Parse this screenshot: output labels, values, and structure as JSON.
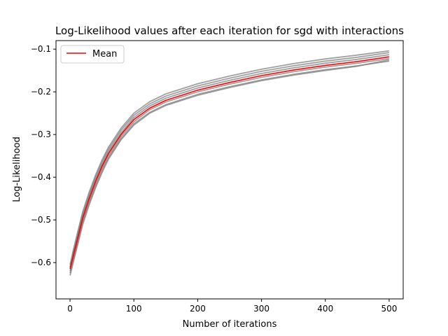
{
  "chart_data": {
    "type": "line",
    "title": "Log-Likelihood values after each iteration for sgd with interactions",
    "xlabel": "Number of iterations",
    "ylabel": "Log-Likelihood",
    "xlim": [
      -22,
      522
    ],
    "ylim": [
      -0.685,
      -0.08
    ],
    "xticks": [
      0,
      100,
      200,
      300,
      400,
      500
    ],
    "xtick_labels": [
      "0",
      "100",
      "200",
      "300",
      "400",
      "500"
    ],
    "yticks": [
      -0.6,
      -0.5,
      -0.4,
      -0.3,
      -0.2,
      -0.1
    ],
    "ytick_labels": [
      "−0.6",
      "−0.5",
      "−0.4",
      "−0.3",
      "−0.2",
      "−0.1"
    ],
    "grid": false,
    "legend": {
      "position": "top-left",
      "entries": [
        "Mean"
      ]
    },
    "colors": {
      "mean": "#ff0000",
      "runs": "#808080"
    },
    "x": [
      0,
      5,
      10,
      20,
      30,
      40,
      50,
      60,
      80,
      100,
      125,
      150,
      175,
      200,
      250,
      300,
      350,
      400,
      450,
      500
    ],
    "series": [
      {
        "name": "Mean",
        "role": "mean",
        "values": [
          -0.615,
          -0.585,
          -0.555,
          -0.495,
          -0.45,
          -0.41,
          -0.375,
          -0.345,
          -0.3,
          -0.265,
          -0.238,
          -0.22,
          -0.208,
          -0.196,
          -0.178,
          -0.162,
          -0.149,
          -0.138,
          -0.129,
          -0.118
        ]
      },
      {
        "role": "run",
        "values": [
          -0.61,
          -0.575,
          -0.545,
          -0.485,
          -0.44,
          -0.4,
          -0.365,
          -0.335,
          -0.29,
          -0.255,
          -0.228,
          -0.21,
          -0.198,
          -0.186,
          -0.168,
          -0.152,
          -0.139,
          -0.128,
          -0.119,
          -0.108
        ]
      },
      {
        "role": "run",
        "values": [
          -0.605,
          -0.572,
          -0.54,
          -0.48,
          -0.435,
          -0.395,
          -0.36,
          -0.33,
          -0.285,
          -0.25,
          -0.223,
          -0.205,
          -0.193,
          -0.181,
          -0.163,
          -0.147,
          -0.134,
          -0.123,
          -0.114,
          -0.104
        ]
      },
      {
        "role": "run",
        "values": [
          -0.625,
          -0.595,
          -0.565,
          -0.505,
          -0.46,
          -0.42,
          -0.385,
          -0.355,
          -0.31,
          -0.275,
          -0.248,
          -0.23,
          -0.218,
          -0.206,
          -0.188,
          -0.172,
          -0.159,
          -0.148,
          -0.139,
          -0.128
        ]
      },
      {
        "role": "run",
        "values": [
          -0.63,
          -0.6,
          -0.57,
          -0.51,
          -0.465,
          -0.425,
          -0.39,
          -0.358,
          -0.312,
          -0.278,
          -0.25,
          -0.232,
          -0.22,
          -0.208,
          -0.19,
          -0.174,
          -0.161,
          -0.15,
          -0.14,
          -0.125
        ]
      },
      {
        "role": "run",
        "values": [
          -0.62,
          -0.59,
          -0.56,
          -0.5,
          -0.455,
          -0.415,
          -0.38,
          -0.35,
          -0.305,
          -0.27,
          -0.242,
          -0.224,
          -0.212,
          -0.2,
          -0.182,
          -0.166,
          -0.153,
          -0.142,
          -0.133,
          -0.122
        ]
      },
      {
        "role": "run",
        "values": [
          -0.612,
          -0.58,
          -0.55,
          -0.49,
          -0.445,
          -0.405,
          -0.37,
          -0.34,
          -0.296,
          -0.26,
          -0.233,
          -0.215,
          -0.203,
          -0.191,
          -0.173,
          -0.157,
          -0.144,
          -0.133,
          -0.124,
          -0.113
        ]
      }
    ]
  }
}
